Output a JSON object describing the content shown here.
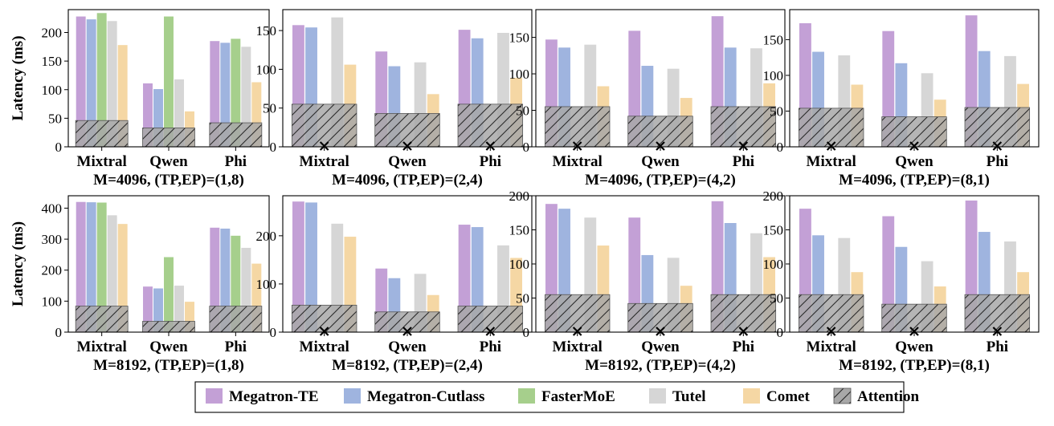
{
  "colors": {
    "Megatron-TE": "#c3a0d6",
    "Megatron-Cutlass": "#9fb4df",
    "FasterMoE": "#a6cf8c",
    "Tutel": "#d6d6d6",
    "Comet": "#f5d7a4",
    "Attention": "#a8a8a8"
  },
  "legend": {
    "items": [
      "Megatron-TE",
      "Megatron-Cutlass",
      "FasterMoE",
      "Tutel",
      "Comet",
      "Attention"
    ]
  },
  "chart_data": [
    {
      "type": "bar",
      "title": "M=4096, (TP,EP)=(1,8)",
      "ylabel": "Latency (ms)",
      "categories": [
        "Mixtral",
        "Qwen",
        "Phi"
      ],
      "ylim": [
        0,
        240
      ],
      "yticks": [
        0,
        50,
        100,
        150,
        200
      ],
      "unsupported": [],
      "series": [
        {
          "name": "Megatron-TE",
          "values": [
            228,
            111,
            185
          ]
        },
        {
          "name": "Megatron-Cutlass",
          "values": [
            223,
            101,
            182
          ]
        },
        {
          "name": "FasterMoE",
          "values": [
            234,
            228,
            189
          ]
        },
        {
          "name": "Tutel",
          "values": [
            220,
            118,
            175
          ]
        },
        {
          "name": "Comet",
          "values": [
            178,
            62,
            113
          ]
        }
      ],
      "attention": [
        46,
        33,
        42
      ]
    },
    {
      "type": "bar",
      "title": "M=4096, (TP,EP)=(2,4)",
      "ylabel": "",
      "categories": [
        "Mixtral",
        "Qwen",
        "Phi"
      ],
      "ylim": [
        0,
        177
      ],
      "yticks": [
        0,
        50,
        100,
        150
      ],
      "unsupported": [
        "FasterMoE"
      ],
      "series": [
        {
          "name": "Megatron-TE",
          "values": [
            157,
            123,
            151
          ]
        },
        {
          "name": "Megatron-Cutlass",
          "values": [
            154,
            104,
            140
          ]
        },
        {
          "name": "Tutel",
          "values": [
            167,
            109,
            147
          ]
        },
        {
          "name": "Comet",
          "values": [
            106,
            68,
            89
          ]
        }
      ],
      "attention": [
        55,
        43,
        55
      ]
    },
    {
      "type": "bar",
      "title": "M=4096, (TP,EP)=(4,2)",
      "ylabel": "",
      "categories": [
        "Mixtral",
        "Qwen",
        "Phi"
      ],
      "ylim": [
        0,
        188
      ],
      "yticks": [
        0,
        50,
        100,
        150
      ],
      "unsupported": [
        "FasterMoE"
      ],
      "series": [
        {
          "name": "Megatron-TE",
          "values": [
            147,
            159,
            179
          ]
        },
        {
          "name": "Megatron-Cutlass",
          "values": [
            136,
            111,
            136
          ]
        },
        {
          "name": "Tutel",
          "values": [
            140,
            107,
            135
          ]
        },
        {
          "name": "Comet",
          "values": [
            83,
            67,
            87
          ]
        }
      ],
      "attention": [
        55,
        42,
        55
      ]
    },
    {
      "type": "bar",
      "title": "M=4096, (TP,EP)=(8,1)",
      "ylabel": "",
      "categories": [
        "Mixtral",
        "Qwen",
        "Phi"
      ],
      "ylim": [
        0,
        192
      ],
      "yticks": [
        0,
        50,
        100,
        150
      ],
      "unsupported": [
        "FasterMoE"
      ],
      "series": [
        {
          "name": "Megatron-TE",
          "values": [
            173,
            162,
            184
          ]
        },
        {
          "name": "Megatron-Cutlass",
          "values": [
            133,
            117,
            134
          ]
        },
        {
          "name": "Tutel",
          "values": [
            128,
            103,
            127
          ]
        },
        {
          "name": "Comet",
          "values": [
            87,
            66,
            88
          ]
        }
      ],
      "attention": [
        54,
        42,
        55
      ]
    },
    {
      "type": "bar",
      "title": "M=8192, (TP,EP)=(1,8)",
      "ylabel": "Latency (ms)",
      "categories": [
        "Mixtral",
        "Qwen",
        "Phi"
      ],
      "ylim": [
        0,
        440
      ],
      "yticks": [
        0,
        100,
        200,
        300,
        400
      ],
      "unsupported": [],
      "series": [
        {
          "name": "Megatron-TE",
          "values": [
            420,
            147,
            337
          ]
        },
        {
          "name": "Megatron-Cutlass",
          "values": [
            419,
            141,
            334
          ]
        },
        {
          "name": "FasterMoE",
          "values": [
            418,
            242,
            311
          ]
        },
        {
          "name": "Tutel",
          "values": [
            377,
            150,
            272
          ]
        },
        {
          "name": "Comet",
          "values": [
            349,
            98,
            221
          ]
        }
      ],
      "attention": [
        84,
        35,
        84
      ]
    },
    {
      "type": "bar",
      "title": "M=8192, (TP,EP)=(2,4)",
      "ylabel": "",
      "categories": [
        "Mixtral",
        "Qwen",
        "Phi"
      ],
      "ylim": [
        0,
        283
      ],
      "yticks": [
        0,
        100,
        200
      ],
      "unsupported": [
        "FasterMoE"
      ],
      "series": [
        {
          "name": "Megatron-TE",
          "values": [
            271,
            132,
            223
          ]
        },
        {
          "name": "Megatron-Cutlass",
          "values": [
            269,
            112,
            218
          ]
        },
        {
          "name": "Tutel",
          "values": [
            225,
            121,
            180
          ]
        },
        {
          "name": "Comet",
          "values": [
            198,
            77,
            154
          ]
        }
      ],
      "attention": [
        56,
        42,
        54
      ]
    },
    {
      "type": "bar",
      "title": "M=8192, (TP,EP)=(4,2)",
      "ylabel": "",
      "categories": [
        "Mixtral",
        "Qwen",
        "Phi"
      ],
      "ylim": [
        0,
        200
      ],
      "yticks": [
        0,
        50,
        100,
        150,
        200
      ],
      "unsupported": [
        "FasterMoE"
      ],
      "series": [
        {
          "name": "Megatron-TE",
          "values": [
            188,
            168,
            192
          ]
        },
        {
          "name": "Megatron-Cutlass",
          "values": [
            181,
            113,
            160
          ]
        },
        {
          "name": "Tutel",
          "values": [
            168,
            109,
            145
          ]
        },
        {
          "name": "Comet",
          "values": [
            127,
            68,
            110
          ]
        }
      ],
      "attention": [
        55,
        42,
        55
      ]
    },
    {
      "type": "bar",
      "title": "M=8192, (TP,EP)=(8,1)",
      "ylabel": "",
      "categories": [
        "Mixtral",
        "Qwen",
        "Phi"
      ],
      "ylim": [
        0,
        200
      ],
      "yticks": [
        0,
        50,
        100,
        150,
        200
      ],
      "unsupported": [
        "FasterMoE"
      ],
      "series": [
        {
          "name": "Megatron-TE",
          "values": [
            181,
            170,
            193
          ]
        },
        {
          "name": "Megatron-Cutlass",
          "values": [
            142,
            125,
            147
          ]
        },
        {
          "name": "Tutel",
          "values": [
            138,
            104,
            133
          ]
        },
        {
          "name": "Comet",
          "values": [
            88,
            67,
            88
          ]
        }
      ],
      "attention": [
        55,
        41,
        55
      ]
    }
  ]
}
